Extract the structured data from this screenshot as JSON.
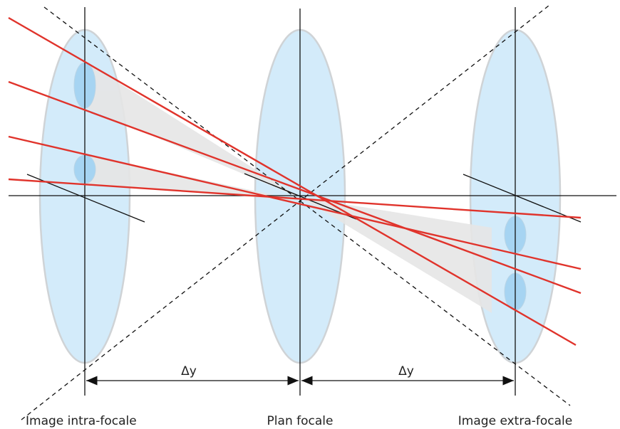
{
  "labels": {
    "delta_left": "Δy",
    "delta_right": "Δy",
    "intra": "Image intra-focale",
    "plan": "Plan focale",
    "extra": "Image extra-focale"
  }
}
